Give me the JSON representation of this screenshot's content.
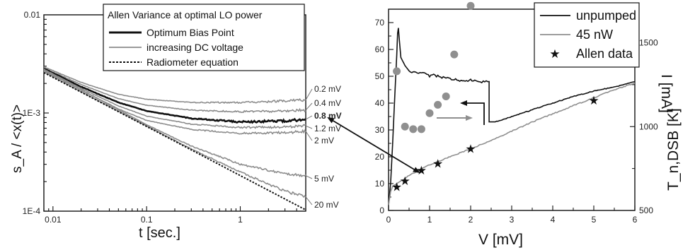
{
  "chart_data": [
    {
      "type": "line",
      "xscale": "log",
      "yscale": "log",
      "xlim": [
        0.008,
        5
      ],
      "ylim": [
        0.0001,
        0.01
      ],
      "xticks": [
        {
          "v": 0.01,
          "label": "0.01"
        },
        {
          "v": 0.1,
          "label": "0.1"
        },
        {
          "v": 1,
          "label": "1"
        }
      ],
      "yticks": [
        {
          "v": 0.01,
          "label": "0.01"
        },
        {
          "v": 0.001,
          "label": "1E-3"
        },
        {
          "v": 0.0001,
          "label": "1E-4"
        }
      ],
      "xlabel": "t  [sec.]",
      "ylabel": "s_A / <x(t)>",
      "legend": {
        "placement": "top-right",
        "title": "Allen Variance at optimal LO power",
        "entries": [
          {
            "label": "Optimum Bias Point",
            "style": "thick-black"
          },
          {
            "label": "increasing DC voltage",
            "style": "gray"
          },
          {
            "label": "Radiometer equation",
            "style": "dotted-black"
          }
        ]
      },
      "series": [
        {
          "label": "0.2 mV",
          "color": "#8c8c8c",
          "points": [
            [
              0.008,
              0.00295
            ],
            [
              0.02,
              0.00205
            ],
            [
              0.05,
              0.00155
            ],
            [
              0.1,
              0.00138
            ],
            [
              0.3,
              0.00128
            ],
            [
              1,
              0.00128
            ],
            [
              3,
              0.00133
            ],
            [
              5,
              0.00136
            ]
          ]
        },
        {
          "label": "0.4 mV",
          "color": "#8c8c8c",
          "points": [
            [
              0.008,
              0.00288
            ],
            [
              0.02,
              0.00195
            ],
            [
              0.05,
              0.0014
            ],
            [
              0.1,
              0.0012
            ],
            [
              0.3,
              0.00107
            ],
            [
              1,
              0.00103
            ],
            [
              3,
              0.00105
            ],
            [
              5,
              0.00107
            ]
          ]
        },
        {
          "label": "0.8 mV",
          "color": "#111111",
          "bold": true,
          "points": [
            [
              0.008,
              0.00283
            ],
            [
              0.02,
              0.00185
            ],
            [
              0.05,
              0.00128
            ],
            [
              0.1,
              0.00105
            ],
            [
              0.3,
              0.00088
            ],
            [
              1,
              0.00081
            ],
            [
              3,
              0.00083
            ],
            [
              5,
              0.00086
            ]
          ]
        },
        {
          "label": "1.2 mV",
          "color": "#8c8c8c",
          "points": [
            [
              0.008,
              0.00278
            ],
            [
              0.02,
              0.00178
            ],
            [
              0.05,
              0.00118
            ],
            [
              0.1,
              0.00093
            ],
            [
              0.3,
              0.00077
            ],
            [
              1,
              0.00071
            ],
            [
              3,
              0.00072
            ],
            [
              5,
              0.00074
            ]
          ]
        },
        {
          "label": "2 mV",
          "color": "#8c8c8c",
          "points": [
            [
              0.008,
              0.00275
            ],
            [
              0.02,
              0.00172
            ],
            [
              0.05,
              0.0011
            ],
            [
              0.1,
              0.00084
            ],
            [
              0.3,
              0.00068
            ],
            [
              1,
              0.00062
            ],
            [
              3,
              0.00063
            ],
            [
              5,
              0.00065
            ]
          ]
        },
        {
          "label": "5 mV",
          "color": "#8c8c8c",
          "points": [
            [
              0.008,
              0.0027
            ],
            [
              0.03,
              0.0014
            ],
            [
              0.1,
              0.00076
            ],
            [
              0.3,
              0.00046
            ],
            [
              1,
              0.0003
            ],
            [
              3,
              0.00024
            ],
            [
              5,
              0.00023
            ]
          ]
        },
        {
          "label": "20 mV",
          "color": "#8c8c8c",
          "points": [
            [
              0.008,
              0.00262
            ],
            [
              0.03,
              0.00135
            ],
            [
              0.1,
              0.00074
            ],
            [
              0.3,
              0.00043
            ],
            [
              1,
              0.00025
            ],
            [
              3,
              0.00016
            ],
            [
              5,
              0.00014
            ]
          ]
        },
        {
          "label": "Radiometer equation",
          "color": "#111111",
          "dotted": true,
          "points": [
            [
              0.008,
              0.00258
            ],
            [
              5,
              0.000103
            ]
          ]
        }
      ],
      "end_labels": [
        "0.2 mV",
        "0.4 mV",
        "0.8 mV",
        "1.2 mV",
        "2 mV",
        "5 mV",
        "20 mV"
      ]
    },
    {
      "type": "line",
      "xlim": [
        0,
        6
      ],
      "ylim": [
        0,
        75
      ],
      "y2lim": [
        500,
        1700
      ],
      "xticks": [
        0,
        1,
        2,
        3,
        4,
        5,
        6
      ],
      "yticks": [
        0,
        10,
        20,
        30,
        40,
        50,
        60,
        70
      ],
      "y2ticks": [
        500,
        1000,
        1500
      ],
      "xlabel": "V [mV]",
      "ylabel": "I [mA]",
      "y2label": "T_n,DSB [K]",
      "legend": {
        "placement": "top-right",
        "entries": [
          {
            "label": "unpumped",
            "style": "black-line"
          },
          {
            "label": "45 nW",
            "style": "gray-line"
          },
          {
            "label": "Allen data",
            "style": "star"
          }
        ]
      },
      "series": [
        {
          "label": "unpumped",
          "color": "#111111",
          "points": [
            [
              0,
              2
            ],
            [
              0.05,
              10
            ],
            [
              0.1,
              25
            ],
            [
              0.15,
              42
            ],
            [
              0.2,
              58
            ],
            [
              0.22,
              66
            ],
            [
              0.24,
              68
            ],
            [
              0.26,
              64
            ],
            [
              0.3,
              57
            ],
            [
              0.4,
              54
            ],
            [
              0.5,
              52
            ],
            [
              0.7,
              51
            ],
            [
              0.9,
              51
            ],
            [
              1.0,
              50
            ],
            [
              1.1,
              50.5
            ],
            [
              1.3,
              49.5
            ],
            [
              1.5,
              49
            ],
            [
              1.7,
              48.5
            ],
            [
              2.0,
              48.5
            ],
            [
              2.2,
              48
            ],
            [
              2.45,
              48
            ],
            [
              2.45,
              33
            ],
            [
              2.6,
              33
            ],
            [
              2.8,
              34
            ],
            [
              3.0,
              35
            ],
            [
              3.5,
              37.5
            ],
            [
              4.0,
              40
            ],
            [
              4.5,
              42.5
            ],
            [
              5.0,
              44.5
            ],
            [
              5.5,
              46
            ],
            [
              6.0,
              48
            ]
          ]
        },
        {
          "label": "45 nW",
          "color": "#8f8f8f",
          "points": [
            [
              0,
              2
            ],
            [
              0.05,
              7
            ],
            [
              0.1,
              9
            ],
            [
              0.2,
              10
            ],
            [
              0.3,
              11
            ],
            [
              0.5,
              13
            ],
            [
              0.8,
              15.5
            ],
            [
              1.0,
              17
            ],
            [
              1.5,
              20
            ],
            [
              2.0,
              23
            ],
            [
              2.5,
              26
            ],
            [
              3.0,
              29.5
            ],
            [
              3.5,
              33
            ],
            [
              4.0,
              36
            ],
            [
              4.5,
              39
            ],
            [
              5.0,
              42
            ],
            [
              5.5,
              45
            ],
            [
              6.0,
              47.5
            ]
          ]
        }
      ],
      "stars": [
        [
          0.2,
          8.8
        ],
        [
          0.4,
          11
        ],
        [
          0.8,
          15
        ],
        [
          1.2,
          17.5
        ],
        [
          2.0,
          23
        ],
        [
          5.0,
          41
        ]
      ],
      "dots_T": [
        [
          0.2,
          1330
        ],
        [
          0.4,
          1000
        ],
        [
          0.6,
          985
        ],
        [
          0.8,
          985
        ],
        [
          1.0,
          1080
        ],
        [
          1.2,
          1130
        ],
        [
          1.4,
          1180
        ],
        [
          1.6,
          1430
        ],
        [
          2.0,
          1720
        ]
      ]
    }
  ]
}
